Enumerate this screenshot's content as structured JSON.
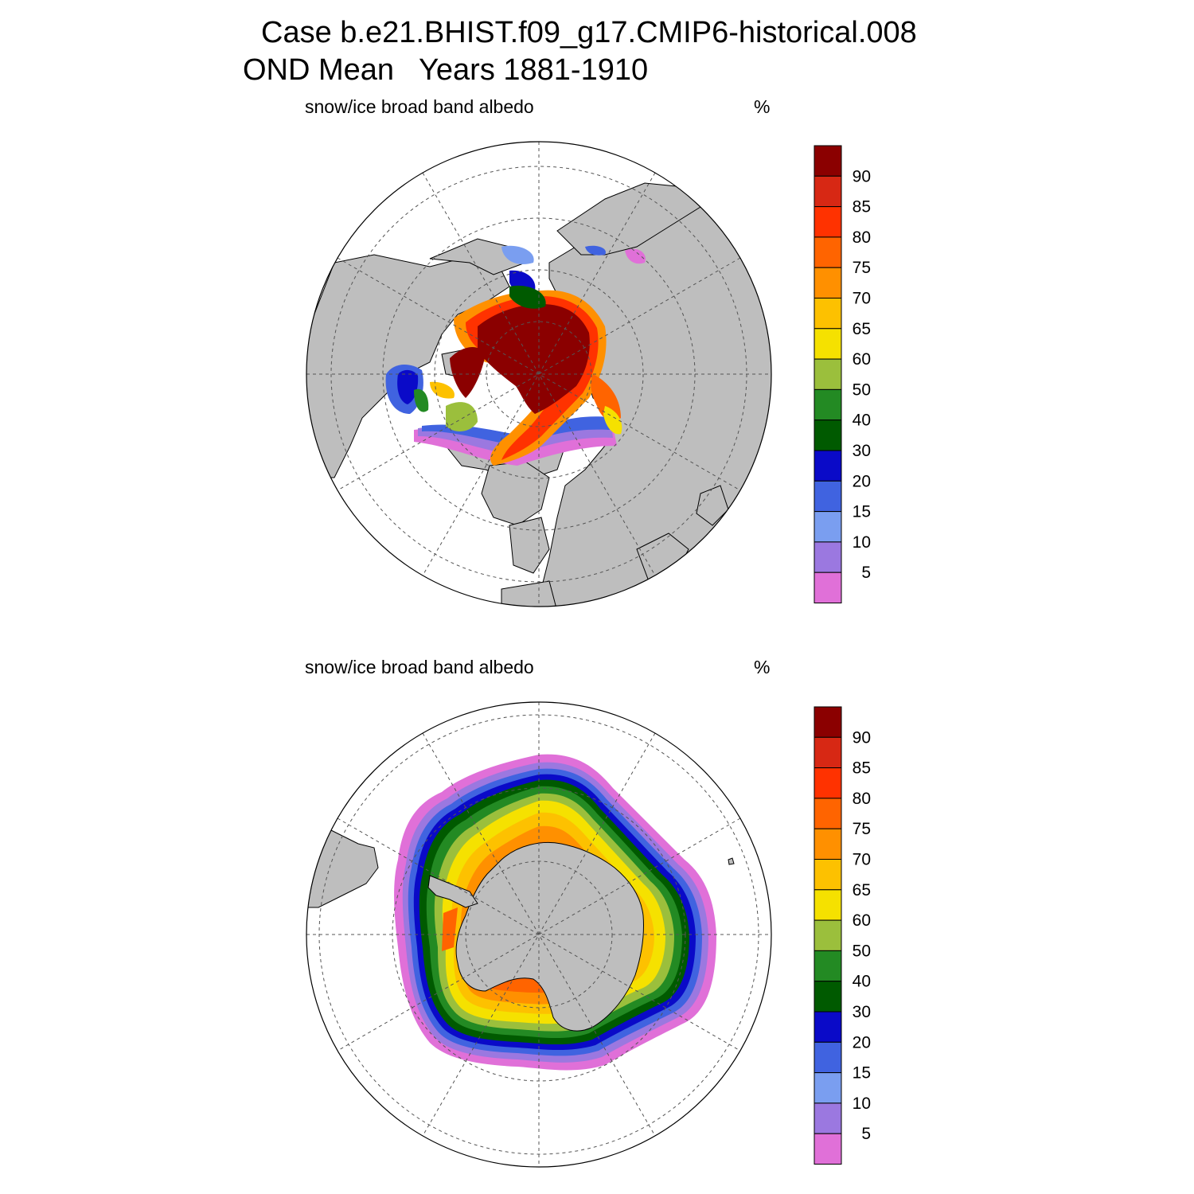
{
  "title_line1": "Case b.e21.BHIST.f09_g17.CMIP6-historical.008",
  "title_line2": "OND Mean   Years 1881-1910",
  "panels": [
    {
      "id": "arctic",
      "label": "snow/ice broad band albedo",
      "unit": "%"
    },
    {
      "id": "antarctic",
      "label": "snow/ice broad band albedo",
      "unit": "%"
    }
  ],
  "colorbar": {
    "levels": [
      5,
      10,
      15,
      20,
      30,
      40,
      50,
      60,
      65,
      70,
      75,
      80,
      85,
      90
    ],
    "tick_labels": [
      "90",
      "85",
      "80",
      "75",
      "70",
      "65",
      "60",
      "50",
      "40",
      "30",
      "20",
      "15",
      "10",
      "5"
    ],
    "colors_low_to_high": [
      "#e070d8",
      "#9b78e0",
      "#7a9ef0",
      "#4063e0",
      "#0a0ac8",
      "#005a00",
      "#238a23",
      "#9bbf3c",
      "#f5e100",
      "#fdc100",
      "#ff9000",
      "#ff6400",
      "#ff3200",
      "#d72814",
      "#8b0000"
    ]
  },
  "colors": {
    "land": "#bebebe",
    "ocean": "#ffffff"
  }
}
